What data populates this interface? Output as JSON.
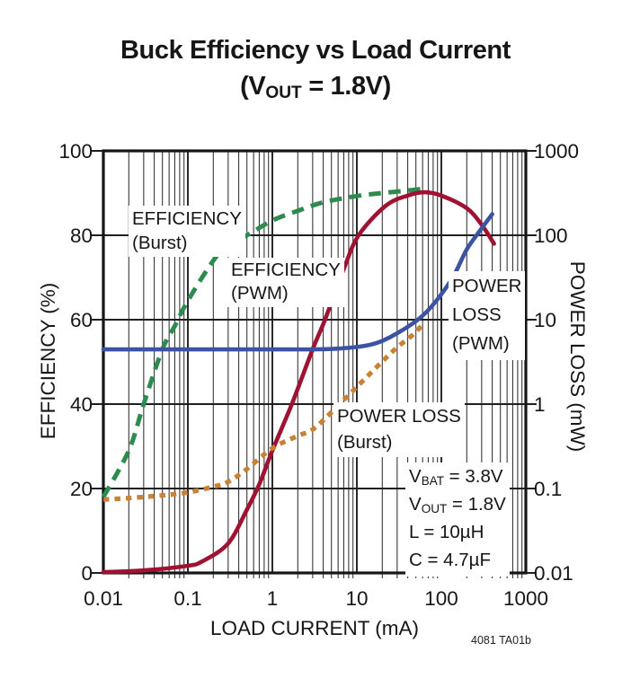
{
  "title": {
    "line1": "Buck Efficiency vs Load Current",
    "line2": {
      "pre": "(V",
      "sub": "OUT",
      "post": " = 1.8V)"
    }
  },
  "chart_data": {
    "type": "line",
    "x_axis": {
      "label": "LOAD CURRENT (mA)",
      "scale": "log",
      "min": 0.01,
      "max": 1000,
      "ticks": [
        "0.01",
        "0.1",
        "1",
        "10",
        "100",
        "1000"
      ]
    },
    "y_left": {
      "label": "EFFICIENCY (%)",
      "scale": "linear",
      "min": 0,
      "max": 100,
      "ticks": [
        "100",
        "80",
        "60",
        "40",
        "20",
        "0"
      ]
    },
    "y_right": {
      "label": "POWER LOSS (mW)",
      "scale": "log",
      "min": 0.01,
      "max": 1000,
      "ticks": [
        "1000",
        "100",
        "10",
        "1",
        "0.1",
        "0.01"
      ]
    },
    "grid": {
      "minor_color": "#2e2e2e",
      "major_color": "#1f1f1f",
      "border_color": "#161616",
      "horizontal_majors": [
        0,
        20,
        40,
        60,
        80,
        100
      ]
    },
    "series": [
      {
        "name": "efficiency-burst",
        "label_line1": "EFFICIENCY",
        "label_line2": "(Burst)",
        "axis": "left",
        "units": "%",
        "color": "#2E8B4F",
        "style": "dashed",
        "points": [
          [
            0.01,
            18
          ],
          [
            0.02,
            29
          ],
          [
            0.03,
            40
          ],
          [
            0.05,
            53
          ],
          [
            0.07,
            58.5
          ],
          [
            0.1,
            64.5
          ],
          [
            0.2,
            74
          ],
          [
            0.3,
            77.8
          ],
          [
            0.5,
            80
          ],
          [
            1,
            83.5
          ],
          [
            2,
            85.8
          ],
          [
            4,
            87.8
          ],
          [
            10,
            89.3
          ],
          [
            20,
            90
          ],
          [
            40,
            90.6
          ],
          [
            60,
            91
          ]
        ]
      },
      {
        "name": "efficiency-pwm",
        "label_line1": "EFFICIENCY",
        "label_line2": "(PWM)",
        "axis": "left",
        "units": "%",
        "color": "#A01231",
        "style": "solid",
        "points": [
          [
            0.01,
            0.2
          ],
          [
            0.03,
            0.6
          ],
          [
            0.1,
            1.7
          ],
          [
            0.15,
            2.8
          ],
          [
            0.3,
            7
          ],
          [
            0.5,
            15
          ],
          [
            0.7,
            21
          ],
          [
            1,
            29
          ],
          [
            1.7,
            40
          ],
          [
            3,
            53
          ],
          [
            4.2,
            60
          ],
          [
            7,
            72
          ],
          [
            10.5,
            80
          ],
          [
            22,
            87
          ],
          [
            40,
            89.4
          ],
          [
            63,
            90.2
          ],
          [
            100,
            89.4
          ],
          [
            200,
            86.4
          ],
          [
            300,
            82.5
          ],
          [
            420,
            78
          ]
        ]
      },
      {
        "name": "power-loss-pwm",
        "label_line1": "POWER",
        "label_line2": "LOSS",
        "label_line3": "(PWM)",
        "axis": "right",
        "units": "mW",
        "color": "#3C53A4",
        "style": "solid",
        "points": [
          [
            0.01,
            4.45
          ],
          [
            0.05,
            4.45
          ],
          [
            0.2,
            4.45
          ],
          [
            1,
            4.45
          ],
          [
            3,
            4.45
          ],
          [
            6,
            4.55
          ],
          [
            10,
            4.75
          ],
          [
            15,
            5.1
          ],
          [
            20,
            5.6
          ],
          [
            30,
            6.9
          ],
          [
            50,
            9.6
          ],
          [
            70,
            13
          ],
          [
            100,
            20
          ],
          [
            140,
            33
          ],
          [
            200,
            68
          ],
          [
            280,
            110
          ],
          [
            400,
            178
          ]
        ]
      },
      {
        "name": "power-loss-burst",
        "label_line1": "POWER LOSS",
        "label_line2": "(Burst)",
        "axis": "right",
        "units": "mW",
        "color": "#C98134",
        "style": "dotted",
        "points": [
          [
            0.01,
            0.074
          ],
          [
            0.02,
            0.077
          ],
          [
            0.05,
            0.083
          ],
          [
            0.1,
            0.09
          ],
          [
            0.2,
            0.105
          ],
          [
            0.3,
            0.12
          ],
          [
            0.5,
            0.17
          ],
          [
            1,
            0.3
          ],
          [
            2,
            0.42
          ],
          [
            3,
            0.5
          ],
          [
            5,
            0.8
          ],
          [
            10,
            1.6
          ],
          [
            20,
            3.2
          ],
          [
            30,
            4.7
          ],
          [
            45,
            6.5
          ],
          [
            58,
            8.4
          ]
        ]
      }
    ]
  },
  "annotations": {
    "conditions": [
      {
        "pre": "V",
        "sub": "BAT",
        "post": " = 3.8V"
      },
      {
        "pre": "V",
        "sub": "OUT",
        "post": " = 1.8V"
      },
      {
        "pre": "L = 10µH",
        "sub": "",
        "post": ""
      },
      {
        "pre": "C = 4.7µF",
        "sub": "",
        "post": ""
      }
    ],
    "note": "4081 TA01b"
  }
}
